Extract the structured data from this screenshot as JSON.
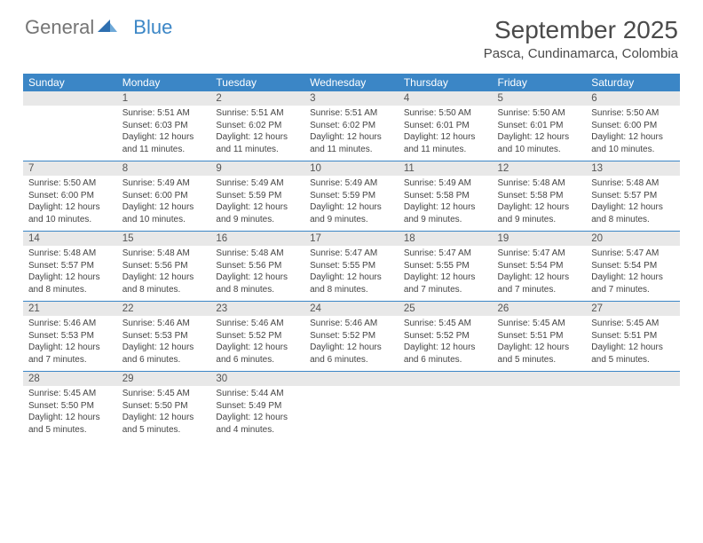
{
  "logo": {
    "text1": "General",
    "text2": "Blue"
  },
  "title": "September 2025",
  "location": "Pasca, Cundinamarca, Colombia",
  "colors": {
    "header_bg": "#3b86c6",
    "header_fg": "#ffffff",
    "daynum_bg": "#e8e8e8",
    "text": "#444444",
    "logo_gray": "#757575",
    "logo_blue": "#3b86c6"
  },
  "day_names": [
    "Sunday",
    "Monday",
    "Tuesday",
    "Wednesday",
    "Thursday",
    "Friday",
    "Saturday"
  ],
  "weeks": [
    [
      null,
      {
        "n": "1",
        "sr": "5:51 AM",
        "ss": "6:03 PM",
        "dl": "12 hours and 11 minutes."
      },
      {
        "n": "2",
        "sr": "5:51 AM",
        "ss": "6:02 PM",
        "dl": "12 hours and 11 minutes."
      },
      {
        "n": "3",
        "sr": "5:51 AM",
        "ss": "6:02 PM",
        "dl": "12 hours and 11 minutes."
      },
      {
        "n": "4",
        "sr": "5:50 AM",
        "ss": "6:01 PM",
        "dl": "12 hours and 11 minutes."
      },
      {
        "n": "5",
        "sr": "5:50 AM",
        "ss": "6:01 PM",
        "dl": "12 hours and 10 minutes."
      },
      {
        "n": "6",
        "sr": "5:50 AM",
        "ss": "6:00 PM",
        "dl": "12 hours and 10 minutes."
      }
    ],
    [
      {
        "n": "7",
        "sr": "5:50 AM",
        "ss": "6:00 PM",
        "dl": "12 hours and 10 minutes."
      },
      {
        "n": "8",
        "sr": "5:49 AM",
        "ss": "6:00 PM",
        "dl": "12 hours and 10 minutes."
      },
      {
        "n": "9",
        "sr": "5:49 AM",
        "ss": "5:59 PM",
        "dl": "12 hours and 9 minutes."
      },
      {
        "n": "10",
        "sr": "5:49 AM",
        "ss": "5:59 PM",
        "dl": "12 hours and 9 minutes."
      },
      {
        "n": "11",
        "sr": "5:49 AM",
        "ss": "5:58 PM",
        "dl": "12 hours and 9 minutes."
      },
      {
        "n": "12",
        "sr": "5:48 AM",
        "ss": "5:58 PM",
        "dl": "12 hours and 9 minutes."
      },
      {
        "n": "13",
        "sr": "5:48 AM",
        "ss": "5:57 PM",
        "dl": "12 hours and 8 minutes."
      }
    ],
    [
      {
        "n": "14",
        "sr": "5:48 AM",
        "ss": "5:57 PM",
        "dl": "12 hours and 8 minutes."
      },
      {
        "n": "15",
        "sr": "5:48 AM",
        "ss": "5:56 PM",
        "dl": "12 hours and 8 minutes."
      },
      {
        "n": "16",
        "sr": "5:48 AM",
        "ss": "5:56 PM",
        "dl": "12 hours and 8 minutes."
      },
      {
        "n": "17",
        "sr": "5:47 AM",
        "ss": "5:55 PM",
        "dl": "12 hours and 8 minutes."
      },
      {
        "n": "18",
        "sr": "5:47 AM",
        "ss": "5:55 PM",
        "dl": "12 hours and 7 minutes."
      },
      {
        "n": "19",
        "sr": "5:47 AM",
        "ss": "5:54 PM",
        "dl": "12 hours and 7 minutes."
      },
      {
        "n": "20",
        "sr": "5:47 AM",
        "ss": "5:54 PM",
        "dl": "12 hours and 7 minutes."
      }
    ],
    [
      {
        "n": "21",
        "sr": "5:46 AM",
        "ss": "5:53 PM",
        "dl": "12 hours and 7 minutes."
      },
      {
        "n": "22",
        "sr": "5:46 AM",
        "ss": "5:53 PM",
        "dl": "12 hours and 6 minutes."
      },
      {
        "n": "23",
        "sr": "5:46 AM",
        "ss": "5:52 PM",
        "dl": "12 hours and 6 minutes."
      },
      {
        "n": "24",
        "sr": "5:46 AM",
        "ss": "5:52 PM",
        "dl": "12 hours and 6 minutes."
      },
      {
        "n": "25",
        "sr": "5:45 AM",
        "ss": "5:52 PM",
        "dl": "12 hours and 6 minutes."
      },
      {
        "n": "26",
        "sr": "5:45 AM",
        "ss": "5:51 PM",
        "dl": "12 hours and 5 minutes."
      },
      {
        "n": "27",
        "sr": "5:45 AM",
        "ss": "5:51 PM",
        "dl": "12 hours and 5 minutes."
      }
    ],
    [
      {
        "n": "28",
        "sr": "5:45 AM",
        "ss": "5:50 PM",
        "dl": "12 hours and 5 minutes."
      },
      {
        "n": "29",
        "sr": "5:45 AM",
        "ss": "5:50 PM",
        "dl": "12 hours and 5 minutes."
      },
      {
        "n": "30",
        "sr": "5:44 AM",
        "ss": "5:49 PM",
        "dl": "12 hours and 4 minutes."
      },
      null,
      null,
      null,
      null
    ]
  ],
  "labels": {
    "sunrise": "Sunrise:",
    "sunset": "Sunset:",
    "daylight": "Daylight:"
  }
}
